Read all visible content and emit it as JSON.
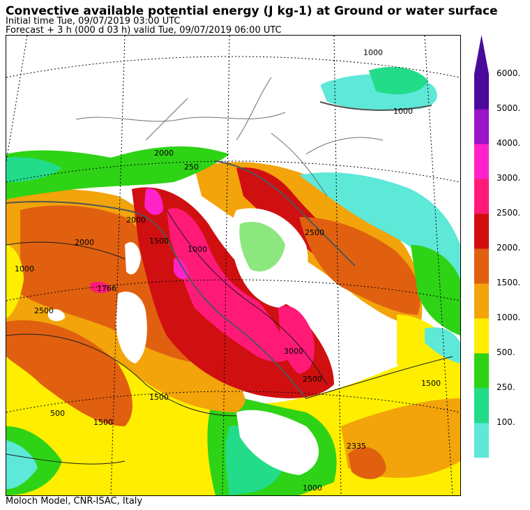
{
  "header": {
    "title": "Convective available potential energy (J kg-1) at Ground or water surface",
    "initial_time": "Initial time  Tue, 09/07/2019  03:00 UTC",
    "forecast": "Forecast  +   3 h  (000 d 03 h)  valid Tue, 09/07/2019 06:00 UTC"
  },
  "footer": {
    "credit": "Moloch Model, CNR-ISAC, Italy"
  },
  "colors": {
    "land": "#ffffff",
    "borders": "#6e6e6e",
    "coast": "#555555",
    "grid": "#000000"
  },
  "legend": {
    "levels": [
      {
        "label": "100.",
        "color": "#5ee8d8"
      },
      {
        "label": "250.",
        "color": "#22dc8a"
      },
      {
        "label": "500.",
        "color": "#2ed316"
      },
      {
        "label": "1000.",
        "color": "#ffee00"
      },
      {
        "label": "1500.",
        "color": "#f2a40a"
      },
      {
        "label": "2000.",
        "color": "#e06010"
      },
      {
        "label": "2500.",
        "color": "#d01010"
      },
      {
        "label": "3000.",
        "color": "#ff1a78"
      },
      {
        "label": "4000.",
        "color": "#ff22c8"
      },
      {
        "label": "5000.",
        "color": "#9a14c8"
      },
      {
        "label": "6000.",
        "color": "#4a0a9a"
      }
    ]
  },
  "contour_labels": [
    {
      "text": "1000"
    },
    {
      "text": "1000"
    },
    {
      "text": "2000"
    },
    {
      "text": "250"
    },
    {
      "text": "2000"
    },
    {
      "text": "2000"
    },
    {
      "text": "2500"
    },
    {
      "text": "1500"
    },
    {
      "text": "1766"
    },
    {
      "text": "1000"
    },
    {
      "text": "3000"
    },
    {
      "text": "2500"
    },
    {
      "text": "1500"
    },
    {
      "text": "500"
    },
    {
      "text": "1500"
    },
    {
      "text": "2335"
    },
    {
      "text": "1000"
    },
    {
      "text": "1000"
    },
    {
      "text": "2500"
    },
    {
      "text": "1500"
    }
  ]
}
